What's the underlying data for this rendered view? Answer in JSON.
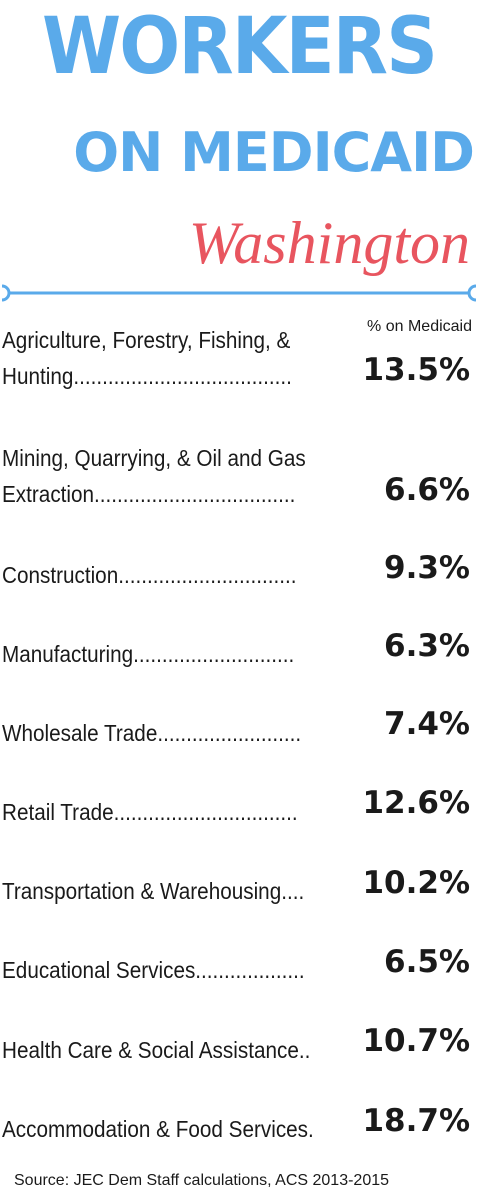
{
  "title": {
    "line1": "WORKERS",
    "line2": "ON MEDICAID",
    "state": "Washington"
  },
  "colors": {
    "title": "#5aaaea",
    "state": "#e8555f",
    "divider": "#5aaaea"
  },
  "column_header": "% on Medicaid",
  "rows": [
    {
      "label_lines": [
        "Agriculture, Forestry, Fishing, &",
        "Hunting......................................"
      ],
      "value": "13.5%"
    },
    {
      "label_lines": [
        "Mining, Quarrying, & Oil and Gas",
        "Extraction..................................."
      ],
      "value": "6.6%"
    },
    {
      "label_lines": [
        "Construction..............................."
      ],
      "value": "9.3%"
    },
    {
      "label_lines": [
        "Manufacturing............................"
      ],
      "value": "6.3%"
    },
    {
      "label_lines": [
        "Wholesale Trade........................."
      ],
      "value": "7.4%"
    },
    {
      "label_lines": [
        "Retail Trade................................"
      ],
      "value": "12.6%"
    },
    {
      "label_lines": [
        "Transportation & Warehousing...."
      ],
      "value": "10.2%"
    },
    {
      "label_lines": [
        "Educational Services..................."
      ],
      "value": "6.5%"
    },
    {
      "label_lines": [
        "Health Care & Social Assistance.."
      ],
      "value": "10.7%"
    },
    {
      "label_lines": [
        "Accommodation & Food Services."
      ],
      "value": "18.7%"
    }
  ],
  "source": "Source: JEC Dem Staff calculations, ACS 2013-2015"
}
